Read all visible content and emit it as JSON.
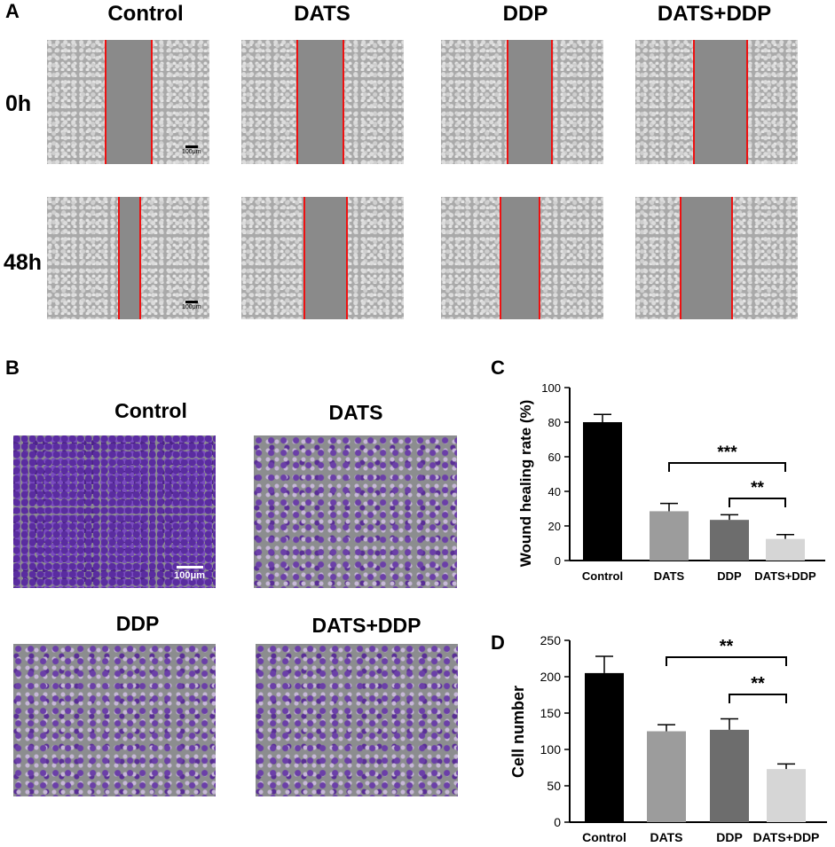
{
  "panels": {
    "a": "A",
    "b": "B",
    "c": "C",
    "d": "D"
  },
  "panel_a": {
    "columns": [
      "Control",
      "DATS",
      "DDP",
      "DATS+DDP"
    ],
    "rows": [
      "0h",
      "48h"
    ],
    "scale_bar": "100μm"
  },
  "panel_b": {
    "titles": [
      "Control",
      "DATS",
      "DDP",
      "DATS+DDP"
    ],
    "scale_bar": "100μm"
  },
  "chart_data": [
    {
      "type": "bar",
      "panel": "C",
      "categories": [
        "Control",
        "DATS",
        "DDP",
        "DATS+DDP"
      ],
      "values": [
        80,
        28.5,
        23.5,
        12.5
      ],
      "errors": [
        4.5,
        4.5,
        3,
        2.5
      ],
      "colors": [
        "#000000",
        "#9c9c9c",
        "#6d6d6d",
        "#d6d6d6"
      ],
      "ylabel": "Wound healing rate (%)",
      "ylim": [
        0,
        100
      ],
      "yticks": [
        0,
        20,
        40,
        60,
        80,
        100
      ],
      "annotations": [
        {
          "from": "DATS",
          "to": "DATS+DDP",
          "label": "***"
        },
        {
          "from": "DDP",
          "to": "DATS+DDP",
          "label": "**"
        }
      ]
    },
    {
      "type": "bar",
      "panel": "D",
      "categories": [
        "Control",
        "DATS",
        "DDP",
        "DATS+DDP"
      ],
      "values": [
        205,
        125,
        127,
        73
      ],
      "errors": [
        23,
        9,
        15,
        7
      ],
      "colors": [
        "#000000",
        "#9c9c9c",
        "#6d6d6d",
        "#d6d6d6"
      ],
      "ylabel": "Cell number",
      "ylim": [
        0,
        250
      ],
      "yticks": [
        0,
        50,
        100,
        150,
        200,
        250
      ],
      "annotations": [
        {
          "from": "DATS",
          "to": "DATS+DDP",
          "label": "**"
        },
        {
          "from": "DDP",
          "to": "DATS+DDP",
          "label": "**"
        }
      ]
    }
  ]
}
